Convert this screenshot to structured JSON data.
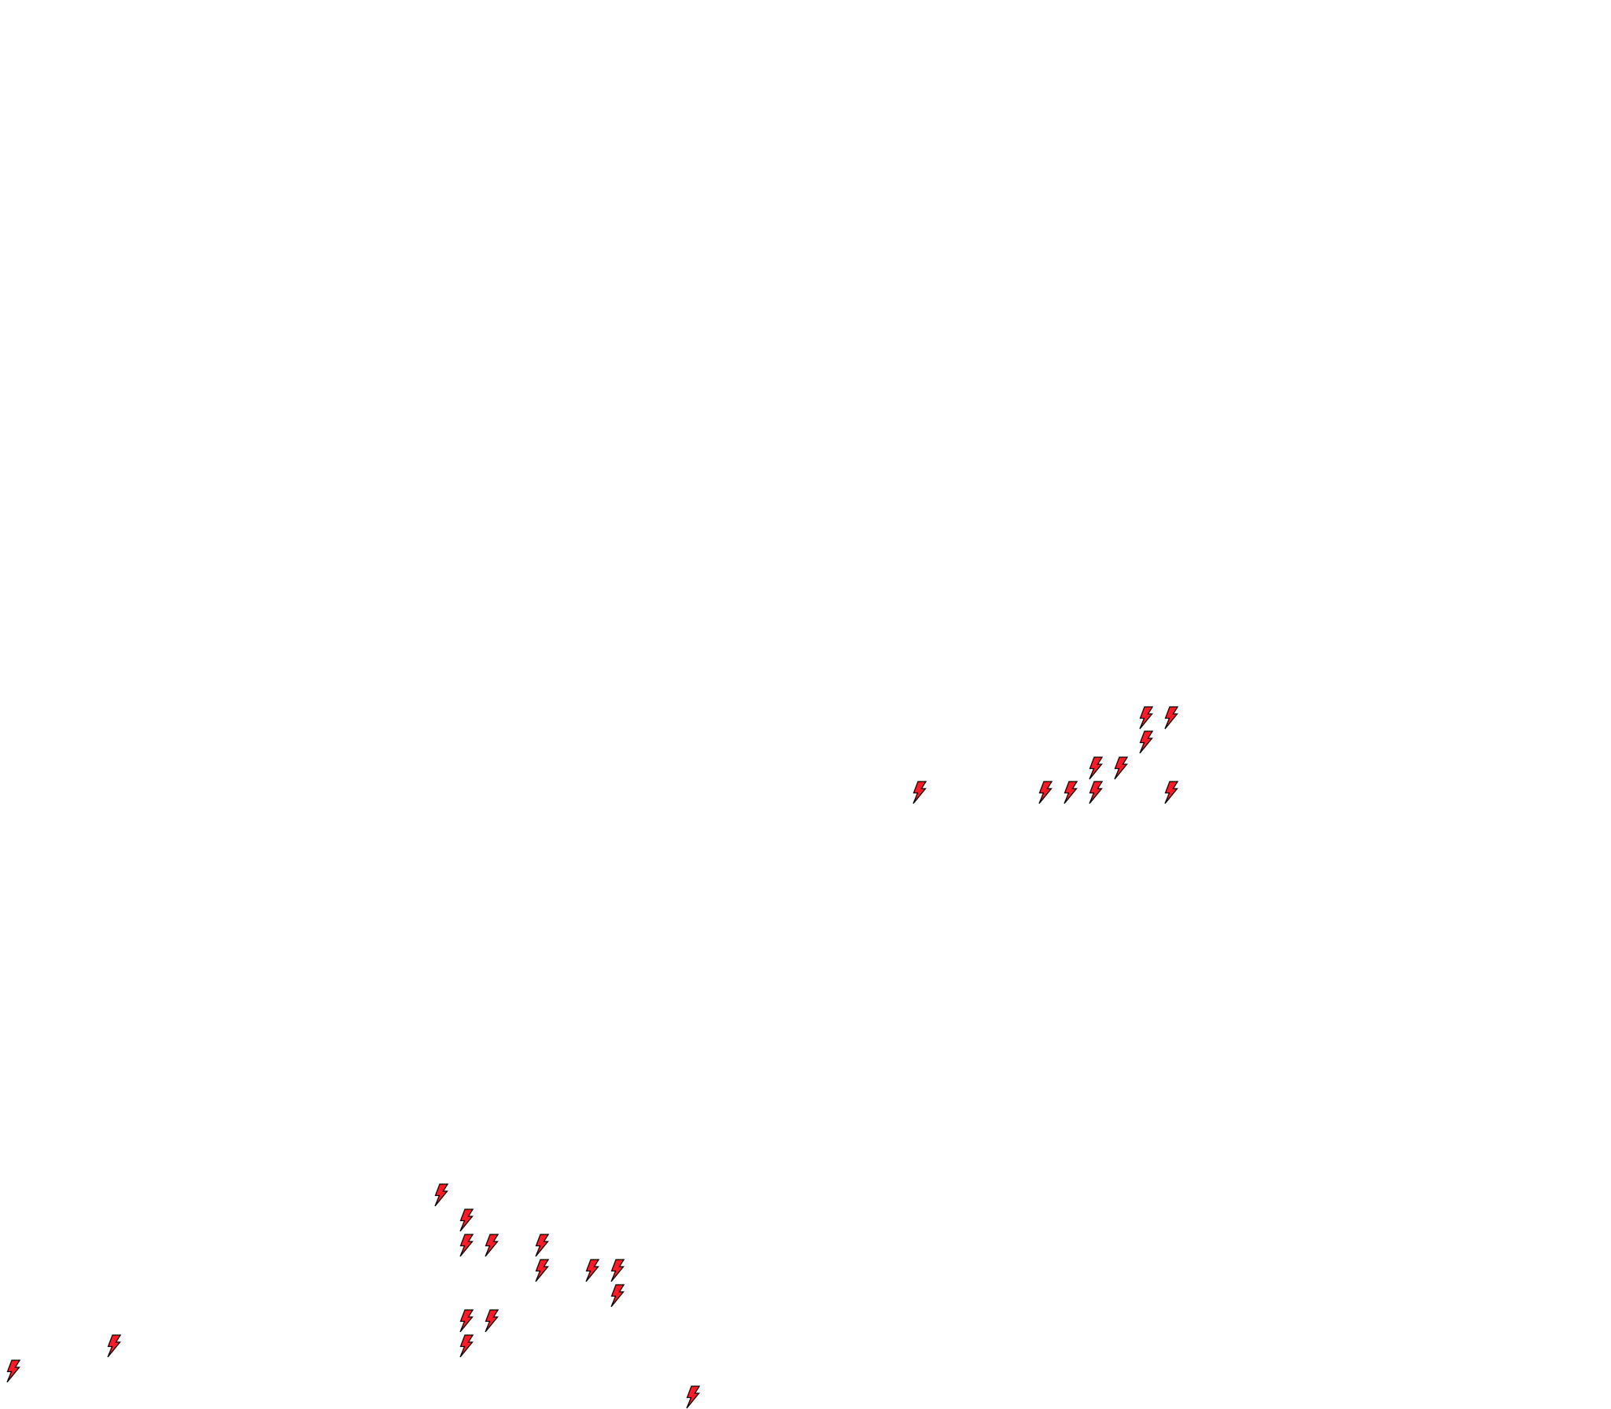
{
  "map": {
    "background_color": "#ffffff",
    "marker_icon": "lightning-bolt-icon",
    "marker_fill": "#ff1a24",
    "marker_stroke": "#000000",
    "marker_count": 27
  }
}
